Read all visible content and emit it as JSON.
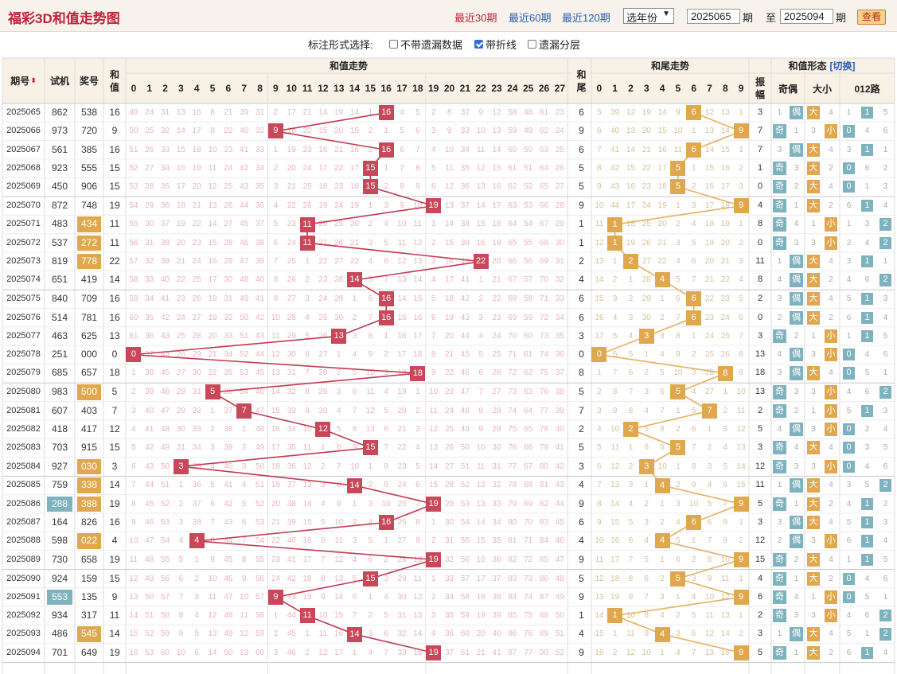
{
  "header": {
    "title": "福彩3D和值走势图",
    "recent30": "最近30期",
    "recent60": "最近60期",
    "recent120": "最近120期",
    "year_select": "选年份",
    "from_period": "2025065",
    "to_period": "2025094",
    "qi": "期",
    "zhi": "至",
    "view_button": "查看"
  },
  "options": {
    "label": "标注形式选择:",
    "items": [
      {
        "label": "不带遗漏数据",
        "checked": false
      },
      {
        "label": "带折线",
        "checked": true
      },
      {
        "label": "遗漏分层",
        "checked": false
      }
    ]
  },
  "columns": {
    "period": "期号",
    "trial": "试机",
    "prize": "奖号",
    "sum": "和值",
    "sum_trend": "和值走势",
    "tail": "和尾",
    "tail_trend": "和尾走势",
    "shape": "和值形态",
    "switch": "[切换]",
    "amplitude": "振幅",
    "odd_even": "奇偶",
    "big_small": "大小",
    "route": "012路"
  },
  "labels": {
    "odd": "奇",
    "even": "偶",
    "big": "大",
    "small": "小"
  },
  "colors": {
    "red": "#c8485a",
    "orange": "#e0a84e",
    "teal": "#7fb2bf",
    "line_red": "#c23a50",
    "line_orange": "#e6b060"
  },
  "rows": [
    {
      "period": "2025065",
      "trial": "862",
      "prize": "538",
      "sum": 16
    },
    {
      "period": "2025066",
      "trial": "973",
      "prize": "720",
      "sum": 9
    },
    {
      "period": "2025067",
      "trial": "561",
      "prize": "385",
      "sum": 16
    },
    {
      "period": "2025068",
      "trial": "923",
      "prize": "555",
      "sum": 15
    },
    {
      "period": "2025069",
      "trial": "450",
      "prize": "906",
      "sum": 15
    },
    {
      "period": "2025070",
      "trial": "872",
      "prize": "748",
      "sum": 19
    },
    {
      "period": "2025071",
      "trial": "483",
      "prize": "434",
      "sum": 11,
      "prize_hl": "orange"
    },
    {
      "period": "2025072",
      "trial": "537",
      "prize": "272",
      "sum": 11,
      "prize_hl": "orange"
    },
    {
      "period": "2025073",
      "trial": "819",
      "prize": "778",
      "sum": 22,
      "prize_hl": "orange"
    },
    {
      "period": "2025074",
      "trial": "651",
      "prize": "419",
      "sum": 14
    },
    {
      "period": "2025075",
      "trial": "840",
      "prize": "709",
      "sum": 16
    },
    {
      "period": "2025076",
      "trial": "514",
      "prize": "781",
      "sum": 16
    },
    {
      "period": "2025077",
      "trial": "463",
      "prize": "625",
      "sum": 13
    },
    {
      "period": "2025078",
      "trial": "251",
      "prize": "000",
      "sum": 0
    },
    {
      "period": "2025079",
      "trial": "685",
      "prize": "657",
      "sum": 18
    },
    {
      "period": "2025080",
      "trial": "983",
      "prize": "500",
      "sum": 5,
      "prize_hl": "orange"
    },
    {
      "period": "2025081",
      "trial": "607",
      "prize": "403",
      "sum": 7
    },
    {
      "period": "2025082",
      "trial": "418",
      "prize": "417",
      "sum": 12
    },
    {
      "period": "2025083",
      "trial": "703",
      "prize": "915",
      "sum": 15
    },
    {
      "period": "2025084",
      "trial": "927",
      "prize": "030",
      "sum": 3,
      "prize_hl": "orange"
    },
    {
      "period": "2025085",
      "trial": "759",
      "prize": "338",
      "sum": 14,
      "prize_hl": "orange"
    },
    {
      "period": "2025086",
      "trial": "288",
      "prize": "388",
      "sum": 19,
      "trial_hl": "teal",
      "prize_hl": "orange"
    },
    {
      "period": "2025087",
      "trial": "164",
      "prize": "826",
      "sum": 16
    },
    {
      "period": "2025088",
      "trial": "598",
      "prize": "022",
      "sum": 4,
      "prize_hl": "orange"
    },
    {
      "period": "2025089",
      "trial": "730",
      "prize": "658",
      "sum": 19
    },
    {
      "period": "2025090",
      "trial": "924",
      "prize": "159",
      "sum": 15
    },
    {
      "period": "2025091",
      "trial": "553",
      "prize": "135",
      "sum": 9,
      "trial_hl": "teal"
    },
    {
      "period": "2025092",
      "trial": "934",
      "prize": "317",
      "sum": 11
    },
    {
      "period": "2025093",
      "trial": "486",
      "prize": "545",
      "sum": 14,
      "prize_hl": "orange"
    },
    {
      "period": "2025094",
      "trial": "701",
      "prize": "649",
      "sum": 19
    }
  ]
}
